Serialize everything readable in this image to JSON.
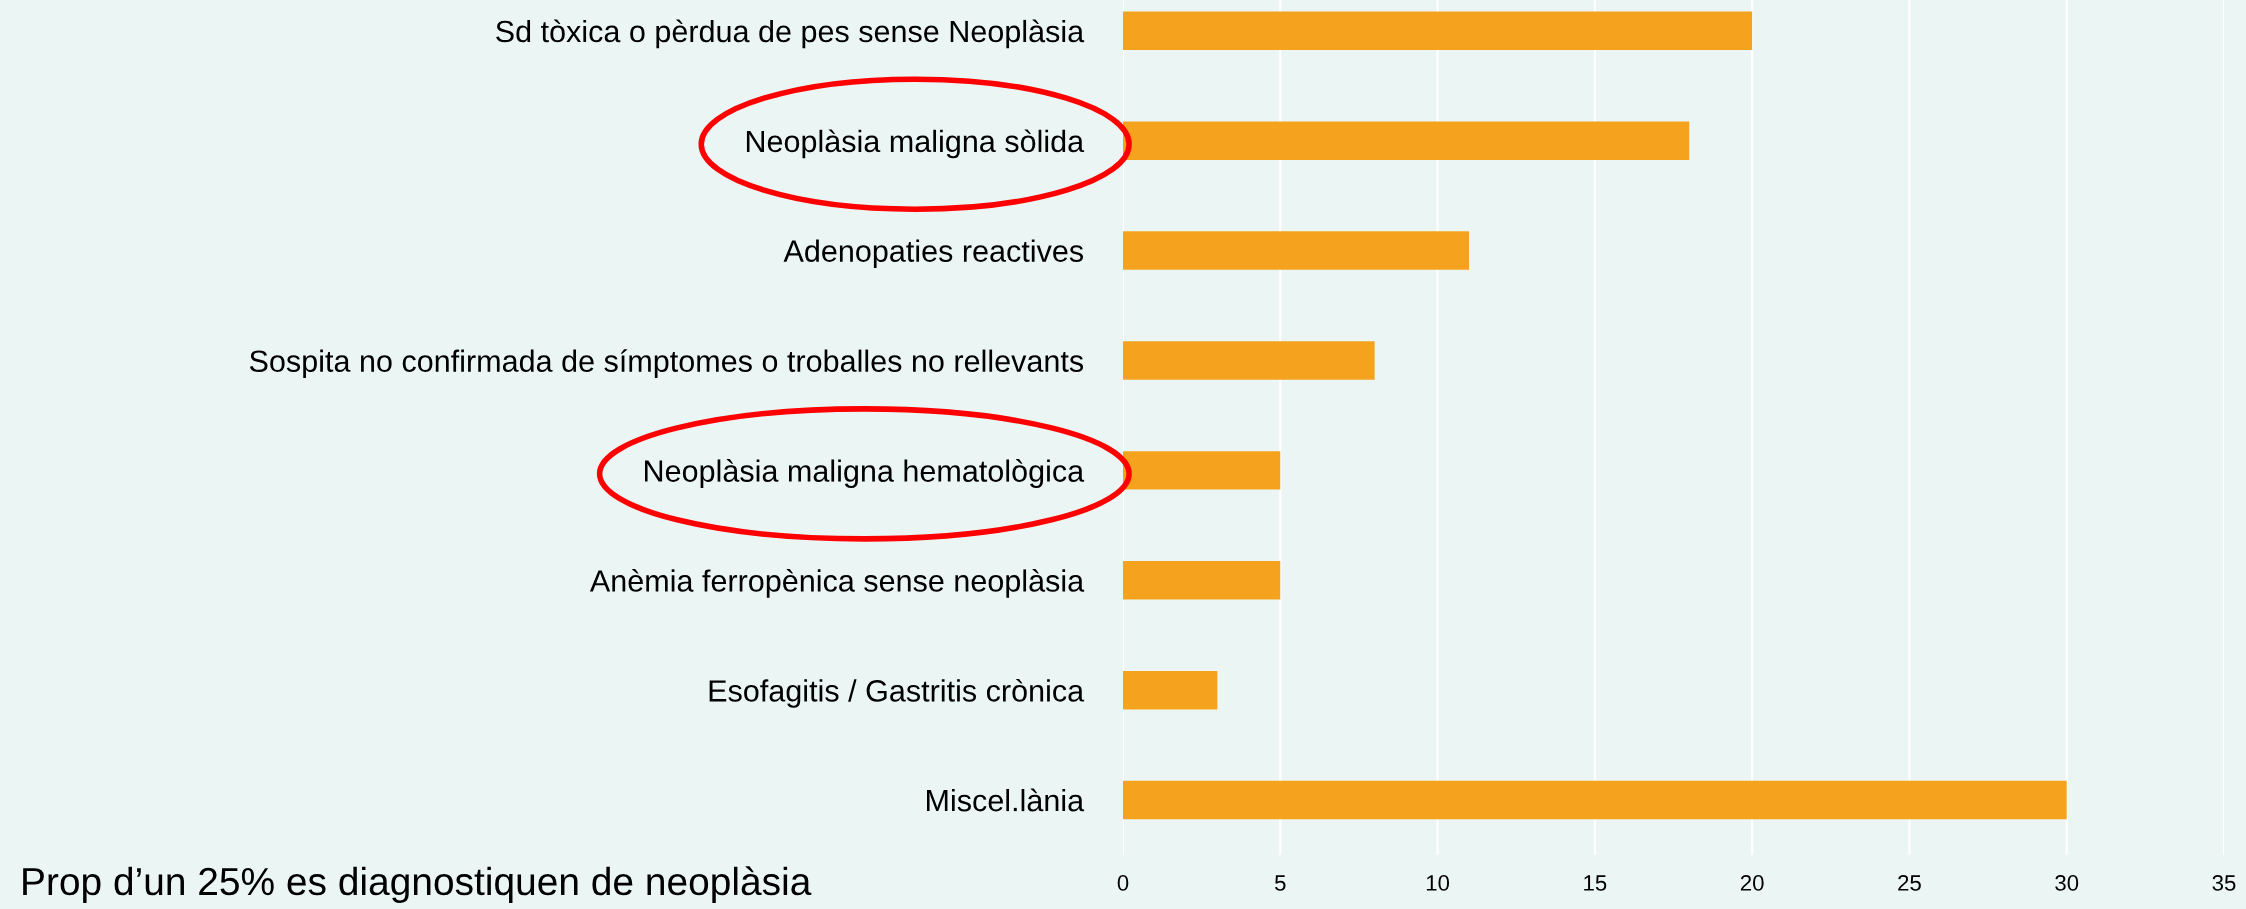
{
  "chart_data": {
    "type": "bar",
    "orientation": "horizontal",
    "categories": [
      "Sd tòxica o pèrdua de pes sense Neoplàsia",
      "Neoplàsia maligna sòlida",
      "Adenopaties reactives",
      "Sospita no confirmada de símptomes o troballes no rellevants",
      "Neoplàsia maligna hematològica",
      "Anèmia ferropènica sense neoplàsia",
      "Esofagitis / Gastritis crònica",
      "Miscel.lània"
    ],
    "values": [
      20,
      18,
      11,
      8,
      5,
      5,
      3,
      30
    ],
    "color": "#f5a31f",
    "xlim": [
      0,
      35
    ],
    "xticks": [
      0,
      5,
      10,
      15,
      20,
      25,
      30,
      35
    ],
    "grid": "x",
    "annotations": [
      "Prop d’un 25% es diagnostiquen de neoplàsia"
    ]
  }
}
